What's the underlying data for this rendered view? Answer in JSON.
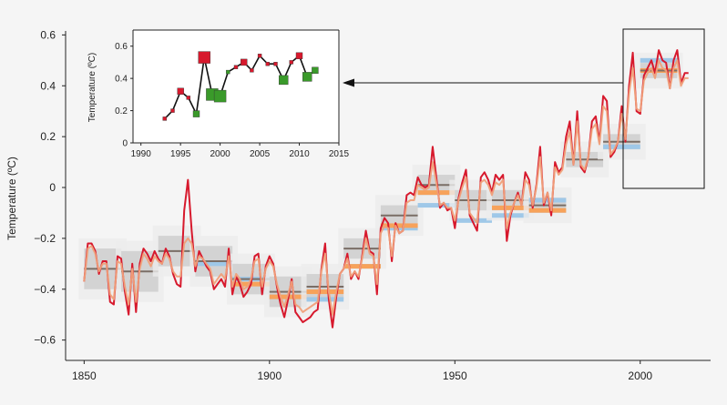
{
  "chart_data": [
    {
      "type": "line",
      "ylabel": "Temperature (ºC)",
      "xlim": [
        1845,
        2018
      ],
      "ylim": [
        -0.68,
        0.63
      ],
      "x_ticks": [
        1850,
        1900,
        1950,
        2000
      ],
      "x_tick_labels": [
        "1850",
        "1900",
        "1950",
        "2000"
      ],
      "y_ticks": [
        -0.6,
        -0.4,
        -0.2,
        0,
        0.2,
        0.4,
        0.6
      ],
      "y_tick_labels": [
        "−0.6",
        "−0.4",
        "−0.2",
        "0",
        "0.2",
        "0.4",
        "0.6"
      ],
      "colors": {
        "dataset_red": "#d7192d",
        "dataset_orange": "#f0a07a",
        "decadal_mean": "#7a6e66",
        "band_orange": "#f7a25a",
        "band_blue": "#9fc8e8",
        "uncertainty_box": "#c8c8c8"
      },
      "series": [
        {
          "x": [
            1850,
            1851,
            1852,
            1853,
            1854,
            1855,
            1856,
            1857,
            1858,
            1859,
            1860,
            1861,
            1862,
            1863,
            1864,
            1865,
            1866,
            1867,
            1868,
            1869,
            1870,
            1871,
            1872,
            1873,
            1874,
            1875,
            1876,
            1877,
            1878,
            1879,
            1880,
            1881,
            1882,
            1883,
            1884,
            1885,
            1886,
            1887,
            1888,
            1889,
            1890,
            1891,
            1892,
            1893,
            1894,
            1895,
            1896,
            1897,
            1898,
            1899,
            1900,
            1901,
            1902,
            1903,
            1904,
            1905,
            1906,
            1907,
            1908,
            1909,
            1910,
            1911,
            1912,
            1913,
            1914,
            1915,
            1916,
            1917,
            1918,
            1919,
            1920,
            1921,
            1922,
            1923,
            1924,
            1925,
            1926,
            1927,
            1928,
            1929,
            1930,
            1931,
            1932,
            1933,
            1934,
            1935,
            1936,
            1937,
            1938,
            1939,
            1940,
            1941,
            1942,
            1943,
            1944,
            1945,
            1946,
            1947,
            1948,
            1949,
            1950,
            1951,
            1952,
            1953,
            1954,
            1955,
            1956,
            1957,
            1958,
            1959,
            1960,
            1961,
            1962,
            1963,
            1964,
            1965,
            1966,
            1967,
            1968,
            1969,
            1970,
            1971,
            1972,
            1973,
            1974,
            1975,
            1976,
            1977,
            1978,
            1979,
            1980,
            1981,
            1982,
            1983,
            1984,
            1985,
            1986,
            1987,
            1988,
            1989,
            1990,
            1991,
            1992,
            1993,
            1994,
            1995,
            1996,
            1997,
            1998,
            1999,
            2000,
            2001,
            2002,
            2003,
            2004,
            2005,
            2006,
            2007,
            2008,
            2009,
            2010,
            2011,
            2012,
            2013
          ],
          "values": [
            -0.37,
            -0.22,
            -0.22,
            -0.25,
            -0.34,
            -0.29,
            -0.29,
            -0.45,
            -0.46,
            -0.27,
            -0.28,
            -0.41,
            -0.5,
            -0.3,
            -0.49,
            -0.3,
            -0.24,
            -0.26,
            -0.29,
            -0.25,
            -0.28,
            -0.3,
            -0.24,
            -0.27,
            -0.34,
            -0.38,
            -0.39,
            -0.09,
            0.03,
            -0.17,
            -0.33,
            -0.25,
            -0.28,
            -0.31,
            -0.33,
            -0.4,
            -0.38,
            -0.36,
            -0.39,
            -0.24,
            -0.42,
            -0.35,
            -0.38,
            -0.43,
            -0.41,
            -0.38,
            -0.27,
            -0.26,
            -0.42,
            -0.31,
            -0.27,
            -0.3,
            -0.39,
            -0.46,
            -0.51,
            -0.44,
            -0.36,
            -0.49,
            -0.51,
            -0.53,
            -0.52,
            -0.51,
            -0.49,
            -0.48,
            -0.32,
            -0.22,
            -0.44,
            -0.55,
            -0.43,
            -0.34,
            -0.32,
            -0.26,
            -0.36,
            -0.33,
            -0.36,
            -0.27,
            -0.17,
            -0.25,
            -0.26,
            -0.42,
            -0.16,
            -0.12,
            -0.14,
            -0.29,
            -0.14,
            -0.18,
            -0.17,
            -0.03,
            -0.02,
            -0.03,
            0.04,
            0.01,
            0.0,
            0.01,
            0.16,
            0.04,
            -0.08,
            -0.06,
            -0.09,
            -0.08,
            -0.16,
            -0.04,
            0.02,
            0.07,
            -0.11,
            -0.14,
            -0.17,
            0.04,
            0.06,
            0.03,
            -0.02,
            0.05,
            0.03,
            0.05,
            -0.21,
            -0.11,
            -0.06,
            -0.02,
            -0.07,
            0.06,
            0.03,
            -0.08,
            0.01,
            0.16,
            -0.07,
            -0.02,
            -0.11,
            0.1,
            0.06,
            0.08,
            0.2,
            0.26,
            0.09,
            0.3,
            0.08,
            0.06,
            0.12,
            0.26,
            0.28,
            0.18,
            0.36,
            0.34,
            0.12,
            0.14,
            0.18,
            0.32,
            0.18,
            0.4,
            0.53,
            0.3,
            0.29,
            0.44,
            0.47,
            0.5,
            0.45,
            0.54,
            0.5,
            0.49,
            0.39,
            0.5,
            0.54,
            0.41,
            0.45,
            0.45
          ],
          "color": "#d7192d"
        },
        {
          "x": [
            1850,
            1851,
            1852,
            1853,
            1854,
            1855,
            1856,
            1857,
            1858,
            1859,
            1860,
            1861,
            1862,
            1863,
            1864,
            1865,
            1866,
            1867,
            1868,
            1869,
            1870,
            1871,
            1872,
            1873,
            1874,
            1875,
            1876,
            1877,
            1878,
            1879,
            1880,
            1881,
            1882,
            1883,
            1884,
            1885,
            1886,
            1887,
            1888,
            1889,
            1890,
            1891,
            1892,
            1893,
            1894,
            1895,
            1896,
            1897,
            1898,
            1899,
            1900,
            1901,
            1902,
            1903,
            1904,
            1905,
            1906,
            1907,
            1908,
            1909,
            1910,
            1911,
            1912,
            1913,
            1914,
            1915,
            1916,
            1917,
            1918,
            1919,
            1920,
            1921,
            1922,
            1923,
            1924,
            1925,
            1926,
            1927,
            1928,
            1929,
            1930,
            1931,
            1932,
            1933,
            1934,
            1935,
            1936,
            1937,
            1938,
            1939,
            1940,
            1941,
            1942,
            1943,
            1944,
            1945,
            1946,
            1947,
            1948,
            1949,
            1950,
            1951,
            1952,
            1953,
            1954,
            1955,
            1956,
            1957,
            1958,
            1959,
            1960,
            1961,
            1962,
            1963,
            1964,
            1965,
            1966,
            1967,
            1968,
            1969,
            1970,
            1971,
            1972,
            1973,
            1974,
            1975,
            1976,
            1977,
            1978,
            1979,
            1980,
            1981,
            1982,
            1983,
            1984,
            1985,
            1986,
            1987,
            1988,
            1989,
            1990,
            1991,
            1992,
            1993,
            1994,
            1995,
            1996,
            1997,
            1998,
            1999,
            2000,
            2001,
            2002,
            2003,
            2004,
            2005,
            2006,
            2007,
            2008,
            2009,
            2010,
            2011,
            2012,
            2013
          ],
          "values": [
            -0.37,
            -0.24,
            -0.23,
            -0.26,
            -0.33,
            -0.3,
            -0.3,
            -0.42,
            -0.44,
            -0.29,
            -0.3,
            -0.39,
            -0.46,
            -0.32,
            -0.45,
            -0.32,
            -0.26,
            -0.28,
            -0.31,
            -0.27,
            -0.29,
            -0.3,
            -0.26,
            -0.28,
            -0.33,
            -0.35,
            -0.35,
            -0.22,
            -0.2,
            -0.22,
            -0.31,
            -0.27,
            -0.28,
            -0.3,
            -0.32,
            -0.38,
            -0.36,
            -0.34,
            -0.36,
            -0.27,
            -0.39,
            -0.34,
            -0.36,
            -0.4,
            -0.39,
            -0.36,
            -0.29,
            -0.28,
            -0.39,
            -0.32,
            -0.29,
            -0.31,
            -0.38,
            -0.43,
            -0.47,
            -0.42,
            -0.37,
            -0.46,
            -0.47,
            -0.49,
            -0.48,
            -0.47,
            -0.46,
            -0.45,
            -0.33,
            -0.26,
            -0.41,
            -0.5,
            -0.41,
            -0.34,
            -0.32,
            -0.28,
            -0.35,
            -0.33,
            -0.35,
            -0.28,
            -0.2,
            -0.26,
            -0.27,
            -0.38,
            -0.18,
            -0.15,
            -0.16,
            -0.27,
            -0.15,
            -0.18,
            -0.17,
            -0.06,
            -0.05,
            -0.05,
            0.01,
            0.0,
            -0.01,
            0.0,
            0.1,
            0.02,
            -0.07,
            -0.06,
            -0.08,
            -0.08,
            -0.13,
            -0.05,
            0.0,
            0.04,
            -0.1,
            -0.12,
            -0.14,
            0.02,
            0.03,
            0.01,
            -0.03,
            0.02,
            0.01,
            0.03,
            -0.16,
            -0.1,
            -0.06,
            -0.03,
            -0.07,
            0.03,
            0.01,
            -0.07,
            0.0,
            0.12,
            -0.06,
            -0.02,
            -0.09,
            0.08,
            0.05,
            0.07,
            0.17,
            0.22,
            0.09,
            0.26,
            0.09,
            0.07,
            0.12,
            0.23,
            0.25,
            0.17,
            0.32,
            0.3,
            0.13,
            0.15,
            0.18,
            0.29,
            0.19,
            0.37,
            0.47,
            0.31,
            0.3,
            0.42,
            0.45,
            0.47,
            0.43,
            0.5,
            0.47,
            0.46,
            0.39,
            0.47,
            0.5,
            0.4,
            0.43,
            0.43
          ],
          "color": "#f0a07a"
        }
      ],
      "decadal_means": {
        "x0": [
          1850,
          1860,
          1870,
          1880,
          1890,
          1900,
          1910,
          1920,
          1930,
          1940,
          1950,
          1960,
          1970,
          1980,
          1990,
          2000
        ],
        "x1": [
          1860,
          1870,
          1880,
          1890,
          1900,
          1910,
          1920,
          1930,
          1940,
          1950,
          1960,
          1970,
          1980,
          1990,
          2000,
          2010
        ],
        "mean": [
          -0.32,
          -0.33,
          -0.25,
          -0.29,
          -0.36,
          -0.41,
          -0.39,
          -0.24,
          -0.11,
          0.01,
          -0.05,
          -0.05,
          -0.07,
          0.11,
          0.18,
          0.46
        ],
        "uncertainty_low": [
          -0.4,
          -0.41,
          -0.31,
          -0.35,
          -0.42,
          -0.47,
          -0.44,
          -0.28,
          -0.15,
          -0.03,
          -0.09,
          -0.09,
          -0.1,
          0.08,
          0.15,
          0.43
        ],
        "uncertainty_high": [
          -0.24,
          -0.25,
          -0.19,
          -0.23,
          -0.3,
          -0.35,
          -0.34,
          -0.2,
          -0.07,
          0.05,
          -0.01,
          -0.01,
          -0.04,
          0.14,
          0.21,
          0.49
        ],
        "band_orange": [
          null,
          null,
          null,
          null,
          -0.38,
          -0.43,
          -0.41,
          -0.31,
          -0.15,
          -0.02,
          null,
          -0.08,
          -0.09,
          null,
          null,
          0.46
        ],
        "band_blue": [
          null,
          null,
          null,
          -0.3,
          -0.36,
          -0.43,
          -0.44,
          -0.31,
          -0.16,
          -0.07,
          -0.13,
          -0.11,
          -0.05,
          null,
          0.16,
          0.5
        ]
      }
    },
    {
      "type": "scatter",
      "ylabel": "Temperature (ºC)",
      "xlim": [
        1989,
        2015
      ],
      "ylim": [
        0,
        0.7
      ],
      "x_ticks": [
        1990,
        1995,
        2000,
        2005,
        2010,
        2015
      ],
      "x_tick_labels": [
        "1990",
        "1995",
        "2000",
        "2005",
        "2010",
        "2015"
      ],
      "y_ticks": [
        0,
        0.2,
        0.4,
        0.6
      ],
      "y_tick_labels": [
        "0",
        "0.2",
        "0.4",
        "0.6"
      ],
      "x": [
        1993,
        1994,
        1995,
        1996,
        1997,
        1998,
        1999,
        2000,
        2001,
        2002,
        2003,
        2004,
        2005,
        2006,
        2007,
        2008,
        2009,
        2010,
        2011,
        2012
      ],
      "values": [
        0.15,
        0.2,
        0.32,
        0.28,
        0.18,
        0.53,
        0.3,
        0.29,
        0.44,
        0.47,
        0.5,
        0.45,
        0.54,
        0.49,
        0.49,
        0.39,
        0.5,
        0.54,
        0.41,
        0.45
      ],
      "marker_color": [
        "red",
        "red",
        "red",
        "red",
        "green",
        "red",
        "green",
        "green",
        "green",
        "red",
        "red",
        "red",
        "red",
        "red",
        "red",
        "green",
        "red",
        "red",
        "green",
        "green"
      ],
      "marker_size": [
        1,
        1,
        2,
        1,
        2,
        4,
        4,
        4,
        1,
        1,
        2,
        1,
        1,
        1,
        1,
        3,
        1,
        2,
        3,
        2
      ],
      "colors": {
        "red": "#d7192d",
        "green": "#3a9a2a"
      }
    }
  ]
}
